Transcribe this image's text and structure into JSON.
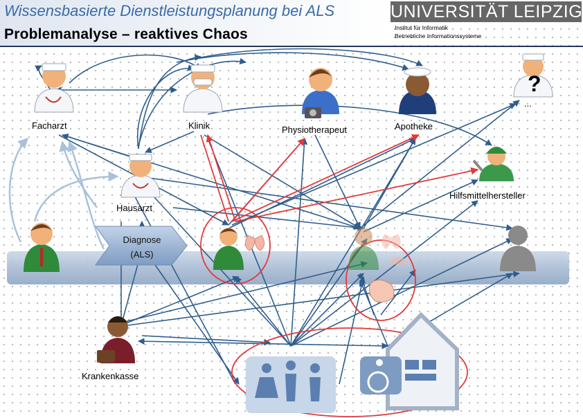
{
  "header": {
    "title": "Wissensbasierte Dienstleistungsplanung bei ALS",
    "subtitle": "Problemanalyse – reaktives Chaos",
    "university": "UNIVERSITÄT LEIPZIG",
    "institute_line1": "Institut für Informatik",
    "institute_line2": "Betriebliche Informationssysteme"
  },
  "actors": {
    "facharzt": "Facharzt",
    "klinik": "Klinik",
    "physiotherapeut": "Physiotherapeut",
    "apotheke": "Apotheke",
    "unknown": "...",
    "hilfsmittelhersteller": "Hilfsmittelhersteller",
    "hausarzt": "Hausarzt",
    "krankenkasse": "Krankenkasse"
  },
  "timeline": {
    "diagnose_line1": "Diagnose",
    "diagnose_line2": "(ALS)"
  },
  "colors": {
    "arrow": "#2f5d8c",
    "arrow_light": "#a9c1dc",
    "highlight": "#e23a3a",
    "patient_green": "#2f8a3a",
    "header_title": "#3a6aa8",
    "university_bg": "#666666"
  }
}
